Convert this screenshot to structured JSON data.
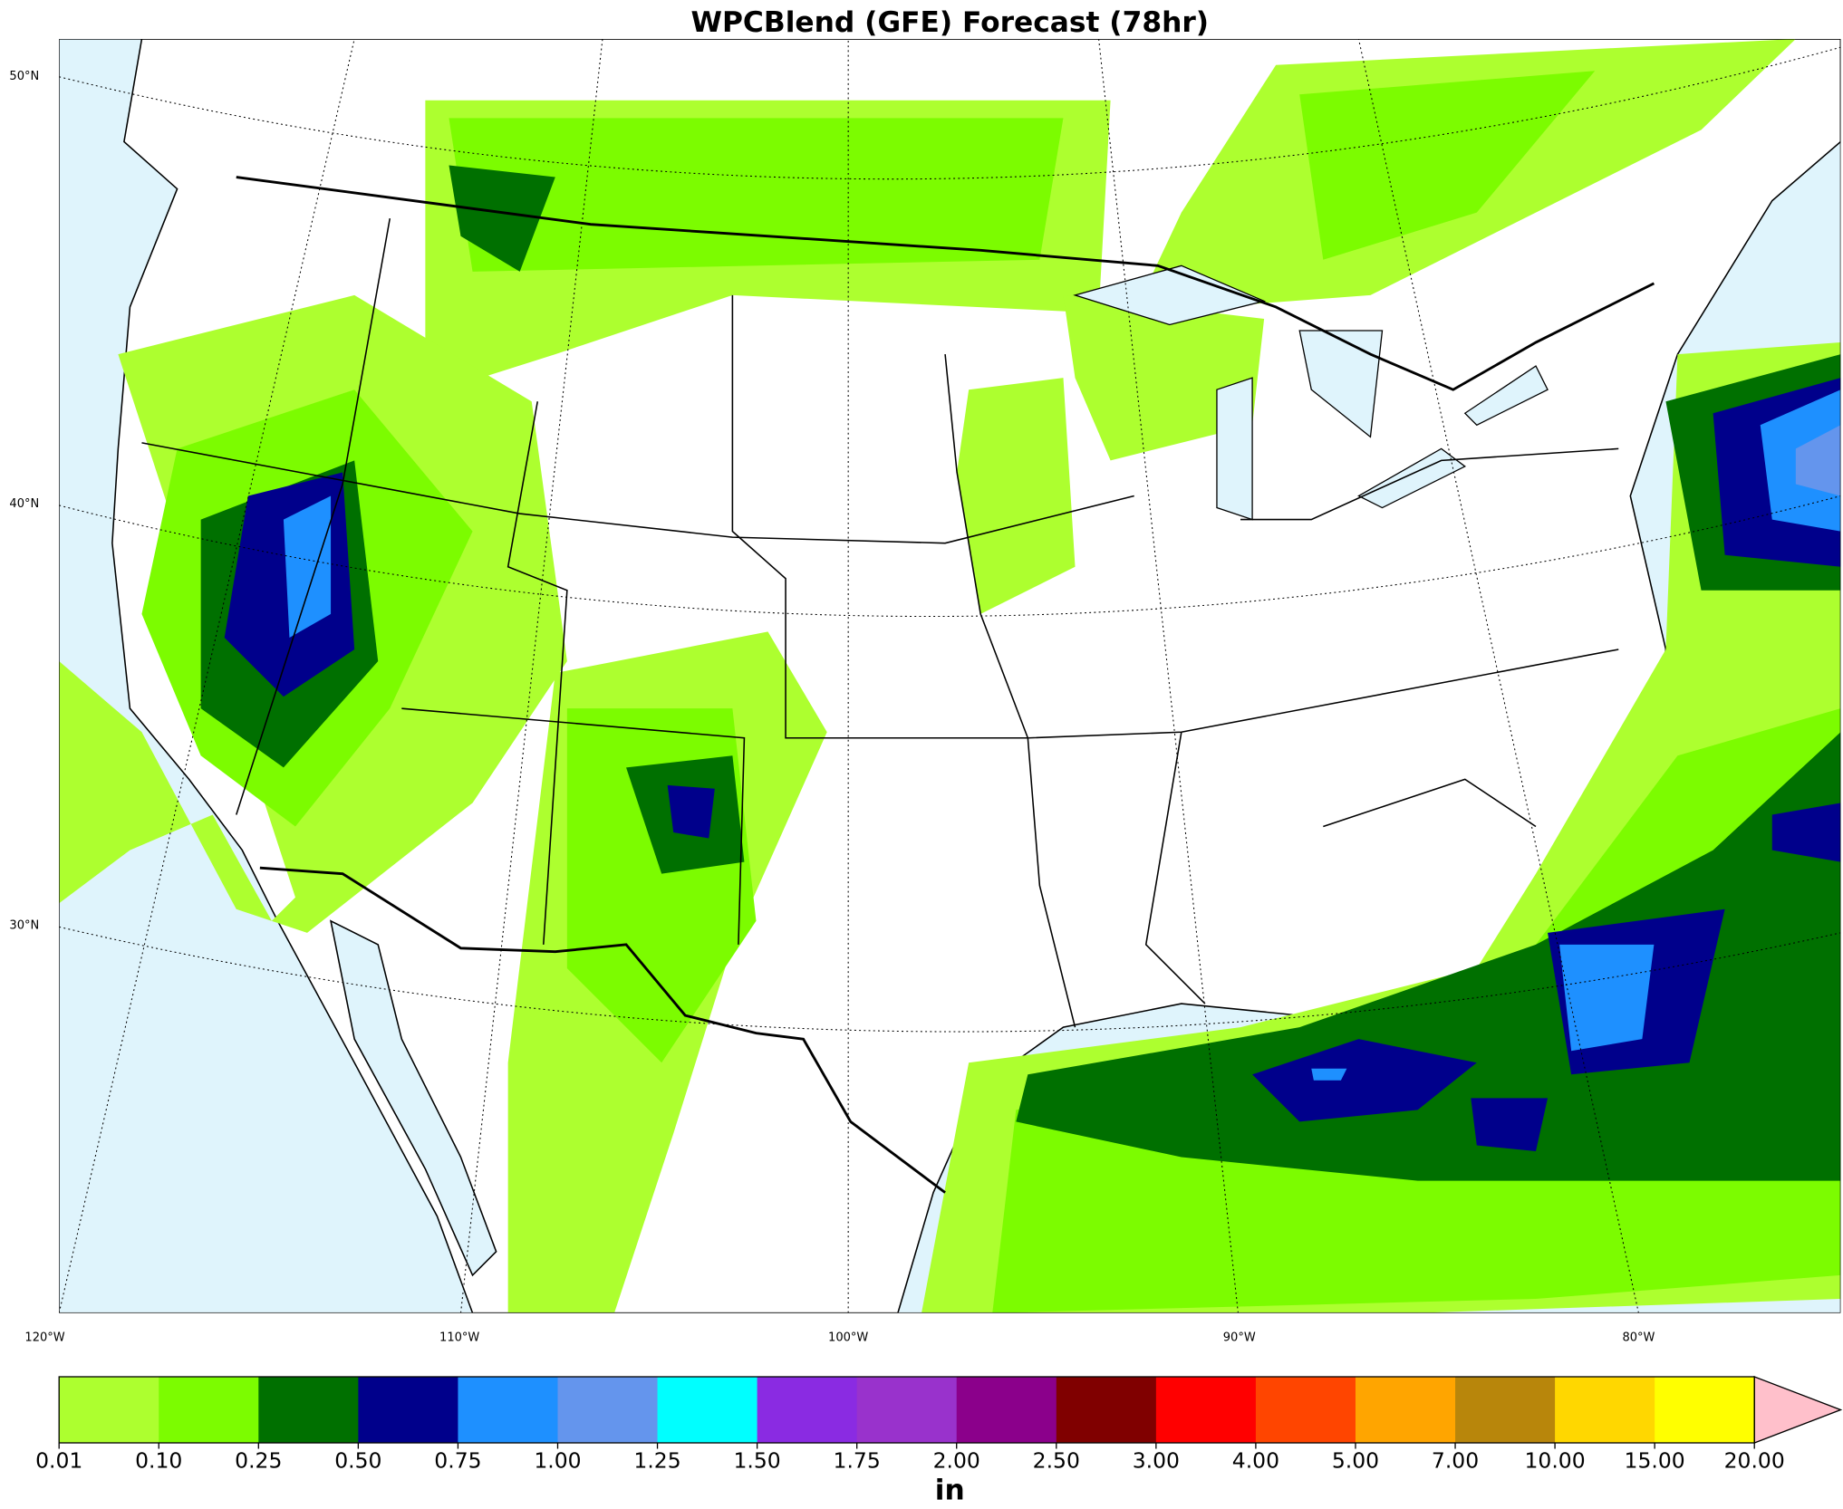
{
  "header": {
    "title": "WPCBlend (GFE) Forecast (78hr)"
  },
  "map": {
    "lat_labels": [
      "50°N",
      "40°N",
      "30°N"
    ],
    "lon_labels": [
      "120°W",
      "110°W",
      "100°W",
      "90°W",
      "80°W"
    ]
  },
  "colorbar": {
    "colors": [
      "#adff2f",
      "#7cfc00",
      "#007000",
      "#00008b",
      "#1e90ff",
      "#6495ed",
      "#00ffff",
      "#8a2be2",
      "#9932cc",
      "#8b008b",
      "#800000",
      "#ff0000",
      "#ff4500",
      "#ffa500",
      "#b8860b",
      "#ffd700",
      "#ffff00",
      "#ffc0cb"
    ],
    "labels": [
      "0.01",
      "0.10",
      "0.25",
      "0.50",
      "0.75",
      "1.00",
      "1.25",
      "1.50",
      "1.75",
      "2.00",
      "2.50",
      "3.00",
      "4.00",
      "5.00",
      "7.00",
      "10.00",
      "15.00",
      "20.00"
    ],
    "unit": "in"
  }
}
